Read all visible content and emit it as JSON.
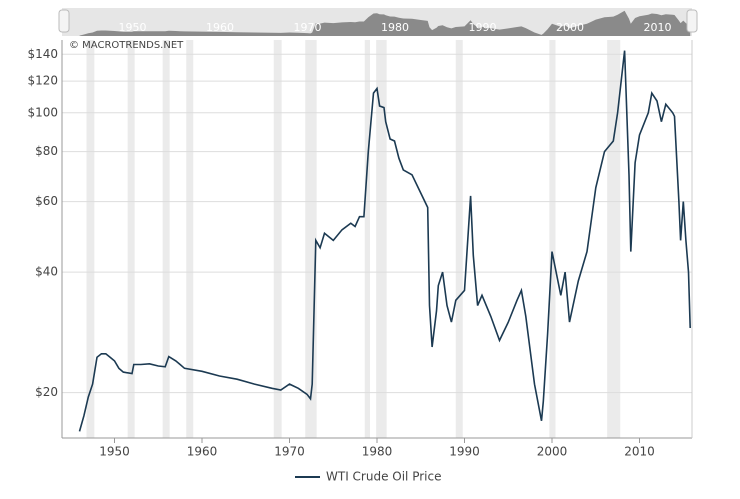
{
  "chart_data": {
    "type": "line",
    "credit": "© MACROTRENDS.NET",
    "log_scale": true,
    "grid": true,
    "x": [
      1946,
      1946.5,
      1947,
      1947.5,
      1948,
      1948.5,
      1949,
      1949.5,
      1950,
      1950.5,
      1951,
      1952,
      1952.2,
      1953,
      1954,
      1955,
      1955.8,
      1956.2,
      1957,
      1957.5,
      1958,
      1960,
      1962,
      1964,
      1966,
      1968,
      1969,
      1970,
      1971,
      1972,
      1972.4,
      1972.6,
      1973,
      1973.5,
      1974,
      1975,
      1976,
      1977,
      1977.5,
      1978,
      1978.5,
      1979,
      1979.6,
      1980,
      1980.3,
      1980.8,
      1981,
      1981.5,
      1982,
      1982.5,
      1983,
      1984,
      1985,
      1985.8,
      1986,
      1986.3,
      1986.8,
      1987,
      1987.5,
      1988,
      1988.5,
      1989,
      1990,
      1990.7,
      1991,
      1991.5,
      1992,
      1993,
      1994,
      1995,
      1996,
      1996.5,
      1997,
      1998,
      1998.8,
      1999,
      1999.5,
      2000,
      2001,
      2001.5,
      2002,
      2003,
      2004,
      2005,
      2006,
      2007,
      2007.5,
      2008.3,
      2008.8,
      2009,
      2009.5,
      2010,
      2011,
      2011.4,
      2012,
      2012.5,
      2013,
      2013.8,
      2014,
      2014.5,
      2014.7,
      2015,
      2015.3,
      2015.6,
      2015.8
    ],
    "series": [
      {
        "name": "WTI Crude Oil Price",
        "color": "#1c3a52",
        "values": [
          16,
          17.5,
          19.5,
          21,
          24.5,
          25,
          25,
          24.5,
          24,
          23,
          22.5,
          22.3,
          23.5,
          23.5,
          23.6,
          23.3,
          23.2,
          24.6,
          24,
          23.5,
          23,
          22.6,
          22,
          21.6,
          21,
          20.5,
          20.3,
          21,
          20.5,
          19.8,
          19.3,
          21,
          48,
          46,
          50,
          48,
          51,
          53,
          52,
          55,
          55,
          80,
          112,
          115,
          104,
          103,
          95,
          86,
          85,
          77,
          72,
          70,
          63,
          58,
          33,
          26,
          32,
          37,
          40,
          33,
          30,
          34,
          36,
          62,
          44,
          33,
          35,
          31,
          27,
          30,
          34,
          36,
          31,
          21,
          17,
          19,
          28,
          45,
          35,
          40,
          30,
          38,
          45,
          65,
          80,
          85,
          100,
          143,
          70,
          45,
          75,
          88,
          100,
          112,
          107,
          95,
          105,
          100,
          98,
          60,
          48,
          60,
          48,
          40,
          29
        ]
      }
    ],
    "xlim": [
      1944,
      2016
    ],
    "xticks": [
      1950,
      1960,
      1970,
      1980,
      1990,
      2000,
      2010
    ],
    "ylim": [
      15.4,
      152
    ],
    "yticks": [
      {
        "value": 20,
        "label": "$20"
      },
      {
        "value": 40,
        "label": "$40"
      },
      {
        "value": 60,
        "label": "$60"
      },
      {
        "value": 80,
        "label": "$80"
      },
      {
        "value": 100,
        "label": "$100"
      },
      {
        "value": 120,
        "label": "$120"
      },
      {
        "value": 140,
        "label": "$140"
      }
    ],
    "shaded_ranges": [
      [
        1946.8,
        1947.7
      ],
      [
        1951.5,
        1952.3
      ],
      [
        1955.5,
        1956.3
      ],
      [
        1958.2,
        1959
      ],
      [
        1968.2,
        1969.1
      ],
      [
        1971.8,
        1973.1
      ],
      [
        1978.6,
        1979.2
      ],
      [
        1979.9,
        1981.1
      ],
      [
        1989,
        1989.8
      ],
      [
        1999.7,
        2000.4
      ],
      [
        2006.3,
        2007.8
      ]
    ],
    "shade_color": "#ebebeb",
    "navigator_color": "#8a8a8a"
  }
}
